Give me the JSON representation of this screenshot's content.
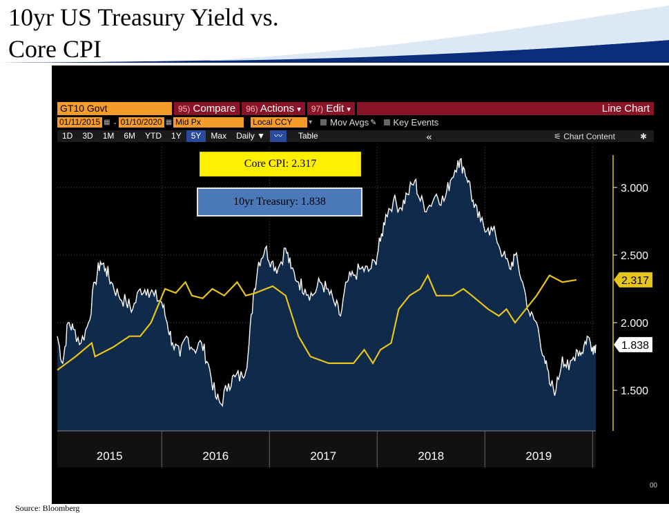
{
  "slide": {
    "title_line1": "10yr US Treasury Yield vs.",
    "title_line2": "Core CPI",
    "source": "Source: Bloomberg"
  },
  "terminal": {
    "security": "GT10 Govt",
    "menu": [
      {
        "num": "95)",
        "label": "Compare",
        "arrow": ""
      },
      {
        "num": "96)",
        "label": "Actions",
        "arrow": "▾"
      },
      {
        "num": "97)",
        "label": "Edit",
        "arrow": "▾"
      }
    ],
    "chart_type": "Line Chart",
    "start_date": "01/11/2015",
    "end_date": "01/10/2020",
    "price_field": "Mid Px",
    "currency": "Local CCY",
    "mov_avgs": "Mov Avgs",
    "key_events": "Key Events",
    "periods": [
      "1D",
      "3D",
      "1M",
      "6M",
      "YTD",
      "1Y",
      "5Y",
      "Max"
    ],
    "active_period": "5Y",
    "frequency": "Daily ▼",
    "table_label": "Table",
    "chart_content_label": "Chart Content",
    "edge_mark": "00"
  },
  "legend": {
    "core": "Core CPI: 2.317",
    "treasury": "10yr Treasury: 1.838"
  },
  "colors": {
    "treasury_line": "#ffffff",
    "treasury_fill": "#102a4c",
    "core_line": "#e8c51a",
    "background": "#000000"
  },
  "chart_data": {
    "type": "line",
    "y_ticks": [
      "3.000",
      "2.500",
      "2.000",
      "1.500"
    ],
    "y_range": [
      1.2,
      3.3
    ],
    "x_range": [
      2015.03,
      2020.03
    ],
    "x_labels": [
      "2015",
      "2016",
      "2017",
      "2018",
      "2019"
    ],
    "series": [
      {
        "name": "10yr Treasury",
        "last_value": "1.838",
        "points": [
          [
            2015.03,
            1.9
          ],
          [
            2015.08,
            1.7
          ],
          [
            2015.13,
            2.0
          ],
          [
            2015.18,
            1.95
          ],
          [
            2015.25,
            1.85
          ],
          [
            2015.32,
            2.0
          ],
          [
            2015.38,
            2.3
          ],
          [
            2015.43,
            2.45
          ],
          [
            2015.48,
            2.4
          ],
          [
            2015.53,
            2.3
          ],
          [
            2015.6,
            2.2
          ],
          [
            2015.67,
            2.15
          ],
          [
            2015.73,
            2.1
          ],
          [
            2015.8,
            2.25
          ],
          [
            2015.87,
            2.25
          ],
          [
            2015.93,
            2.2
          ],
          [
            2016.0,
            2.15
          ],
          [
            2016.05,
            2.0
          ],
          [
            2016.1,
            1.85
          ],
          [
            2016.17,
            1.75
          ],
          [
            2016.23,
            1.9
          ],
          [
            2016.3,
            1.8
          ],
          [
            2016.37,
            1.85
          ],
          [
            2016.43,
            1.7
          ],
          [
            2016.5,
            1.45
          ],
          [
            2016.55,
            1.4
          ],
          [
            2016.62,
            1.55
          ],
          [
            2016.68,
            1.6
          ],
          [
            2016.75,
            1.6
          ],
          [
            2016.8,
            1.75
          ],
          [
            2016.85,
            2.2
          ],
          [
            2016.9,
            2.45
          ],
          [
            2016.96,
            2.55
          ],
          [
            2017.02,
            2.45
          ],
          [
            2017.08,
            2.4
          ],
          [
            2017.15,
            2.55
          ],
          [
            2017.2,
            2.4
          ],
          [
            2017.27,
            2.3
          ],
          [
            2017.33,
            2.25
          ],
          [
            2017.4,
            2.2
          ],
          [
            2017.47,
            2.3
          ],
          [
            2017.53,
            2.25
          ],
          [
            2017.6,
            2.15
          ],
          [
            2017.66,
            2.05
          ],
          [
            2017.72,
            2.3
          ],
          [
            2017.78,
            2.35
          ],
          [
            2017.85,
            2.4
          ],
          [
            2017.92,
            2.38
          ],
          [
            2017.98,
            2.45
          ],
          [
            2018.03,
            2.6
          ],
          [
            2018.08,
            2.8
          ],
          [
            2018.15,
            2.9
          ],
          [
            2018.22,
            2.85
          ],
          [
            2018.28,
            2.95
          ],
          [
            2018.35,
            3.05
          ],
          [
            2018.4,
            2.9
          ],
          [
            2018.47,
            2.85
          ],
          [
            2018.55,
            2.95
          ],
          [
            2018.62,
            2.9
          ],
          [
            2018.68,
            3.05
          ],
          [
            2018.75,
            3.2
          ],
          [
            2018.8,
            3.15
          ],
          [
            2018.85,
            3.05
          ],
          [
            2018.9,
            2.85
          ],
          [
            2018.96,
            2.75
          ],
          [
            2019.03,
            2.7
          ],
          [
            2019.1,
            2.65
          ],
          [
            2019.17,
            2.5
          ],
          [
            2019.23,
            2.4
          ],
          [
            2019.28,
            2.5
          ],
          [
            2019.35,
            2.3
          ],
          [
            2019.42,
            2.05
          ],
          [
            2019.48,
            2.0
          ],
          [
            2019.55,
            1.75
          ],
          [
            2019.6,
            1.55
          ],
          [
            2019.66,
            1.5
          ],
          [
            2019.72,
            1.75
          ],
          [
            2019.78,
            1.65
          ],
          [
            2019.85,
            1.8
          ],
          [
            2019.9,
            1.78
          ],
          [
            2019.95,
            1.9
          ],
          [
            2020.0,
            1.82
          ],
          [
            2020.03,
            1.838
          ]
        ]
      },
      {
        "name": "Core CPI",
        "last_value": "2.317",
        "points": [
          [
            2015.03,
            1.65
          ],
          [
            2015.2,
            1.75
          ],
          [
            2015.35,
            1.85
          ],
          [
            2015.38,
            1.75
          ],
          [
            2015.55,
            1.82
          ],
          [
            2015.7,
            1.9
          ],
          [
            2015.8,
            1.9
          ],
          [
            2015.9,
            2.0
          ],
          [
            2016.03,
            2.25
          ],
          [
            2016.13,
            2.22
          ],
          [
            2016.22,
            2.3
          ],
          [
            2016.28,
            2.2
          ],
          [
            2016.38,
            2.18
          ],
          [
            2016.47,
            2.25
          ],
          [
            2016.58,
            2.2
          ],
          [
            2016.7,
            2.3
          ],
          [
            2016.78,
            2.2
          ],
          [
            2016.87,
            2.22
          ],
          [
            2017.03,
            2.27
          ],
          [
            2017.15,
            2.2
          ],
          [
            2017.27,
            1.9
          ],
          [
            2017.38,
            1.75
          ],
          [
            2017.55,
            1.7
          ],
          [
            2017.78,
            1.7
          ],
          [
            2017.88,
            1.8
          ],
          [
            2017.96,
            1.7
          ],
          [
            2018.03,
            1.8
          ],
          [
            2018.13,
            1.85
          ],
          [
            2018.2,
            2.1
          ],
          [
            2018.3,
            2.2
          ],
          [
            2018.4,
            2.25
          ],
          [
            2018.47,
            2.35
          ],
          [
            2018.55,
            2.2
          ],
          [
            2018.7,
            2.2
          ],
          [
            2018.8,
            2.25
          ],
          [
            2018.88,
            2.2
          ],
          [
            2019.03,
            2.1
          ],
          [
            2019.13,
            2.05
          ],
          [
            2019.2,
            2.1
          ],
          [
            2019.28,
            2.0
          ],
          [
            2019.38,
            2.1
          ],
          [
            2019.48,
            2.2
          ],
          [
            2019.6,
            2.35
          ],
          [
            2019.72,
            2.3
          ],
          [
            2019.85,
            2.317
          ]
        ]
      }
    ]
  }
}
